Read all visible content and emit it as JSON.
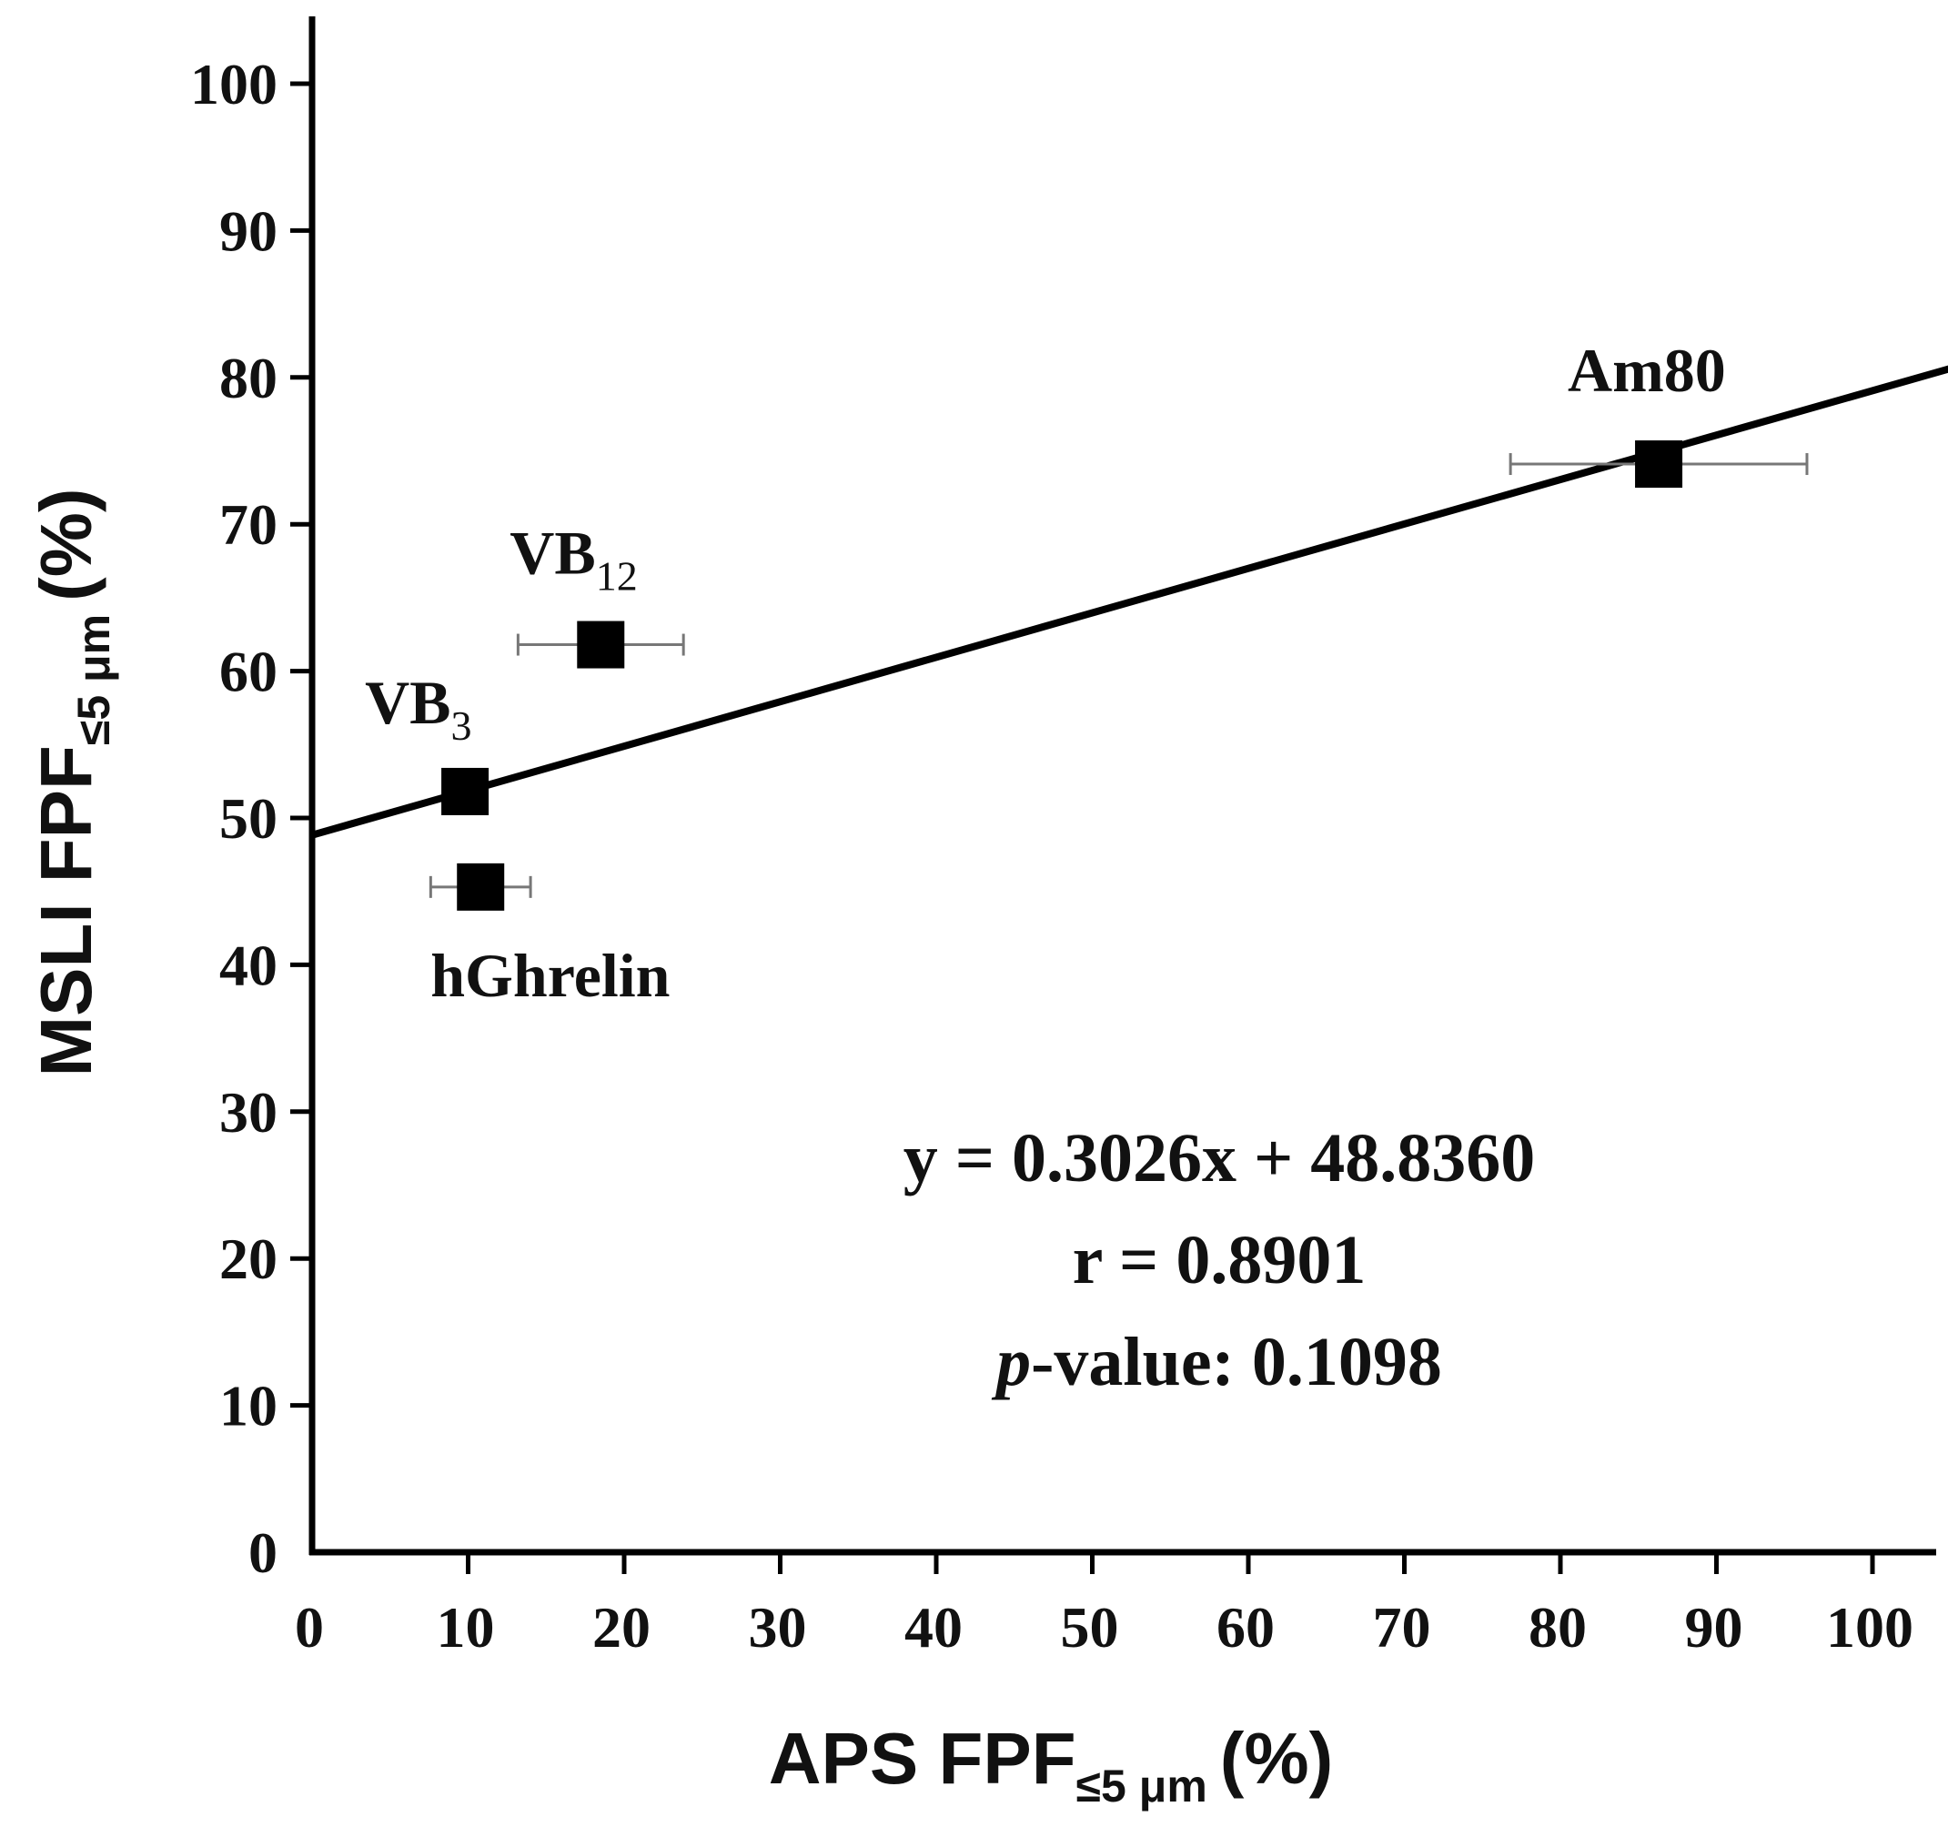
{
  "chart_data": {
    "type": "scatter",
    "xlabel": {
      "main": "APS FPF",
      "sub": "≤5 μm",
      "unit": "(%)"
    },
    "ylabel": {
      "main": "MSLI FPF",
      "sub": "≤5 μm",
      "unit": "(%)"
    },
    "xlim": [
      0,
      105
    ],
    "ylim": [
      0,
      100
    ],
    "x_ticks": [
      "0",
      "10",
      "20",
      "30",
      "40",
      "50",
      "60",
      "70",
      "80",
      "90",
      "100"
    ],
    "y_ticks": [
      "0",
      "10",
      "20",
      "30",
      "40",
      "50",
      "60",
      "70",
      "80",
      "90",
      "100"
    ],
    "grid": false,
    "points": [
      {
        "label": "VB",
        "label_sub": "3",
        "x": 9.8,
        "y": 51.8,
        "xerr": 0.0
      },
      {
        "label": "VB",
        "label_sub": "12",
        "x": 18.5,
        "y": 61.8,
        "xerr": 5.3
      },
      {
        "label": "hGhrelin",
        "label_sub": "",
        "x": 10.8,
        "y": 45.3,
        "xerr": 3.2
      },
      {
        "label": "Am80",
        "label_sub": "",
        "x": 86.3,
        "y": 74.1,
        "xerr": 9.5
      }
    ],
    "fit": {
      "slope": 0.3026,
      "intercept": 48.836
    },
    "annotations": {
      "equation": "y = 0.3026x + 48.8360",
      "r": "r = 0.8901",
      "p_italic": "p",
      "p_rest": "-value: 0.1098"
    },
    "colors": {
      "marker": "#000000",
      "error_bar": "#777777",
      "line": "#000000"
    }
  }
}
